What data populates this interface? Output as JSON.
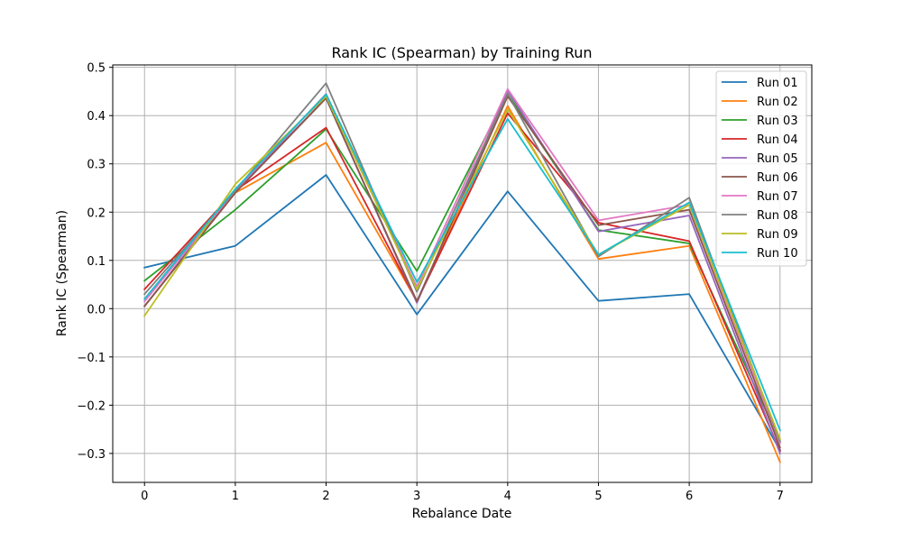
{
  "chart_data": {
    "type": "line",
    "title": "Rank IC (Spearman) by Training Run",
    "xlabel": "Rebalance Date",
    "ylabel": "Rank IC (Spearman)",
    "x": [
      0,
      1,
      2,
      3,
      4,
      5,
      6,
      7
    ],
    "xlim": [
      -0.35,
      7.35
    ],
    "ylim": [
      -0.36,
      0.505
    ],
    "yticks": [
      -0.3,
      -0.2,
      -0.1,
      0.0,
      0.1,
      0.2,
      0.3,
      0.4,
      0.5
    ],
    "ytick_labels": [
      "−0.3",
      "−0.2",
      "−0.1",
      "0.0",
      "0.1",
      "0.2",
      "0.3",
      "0.4",
      "0.5"
    ],
    "xtick_labels": [
      "0",
      "1",
      "2",
      "3",
      "4",
      "5",
      "6",
      "7"
    ],
    "grid": true,
    "legend_position": "top-right",
    "series": [
      {
        "name": "Run 01",
        "color": "#1f77b4",
        "values": [
          0.085,
          0.13,
          0.277,
          -0.012,
          0.243,
          0.016,
          0.03,
          -0.293
        ]
      },
      {
        "name": "Run 02",
        "color": "#ff7f0e",
        "values": [
          0.005,
          0.24,
          0.344,
          0.015,
          0.42,
          0.103,
          0.13,
          -0.318
        ]
      },
      {
        "name": "Run 03",
        "color": "#2ca02c",
        "values": [
          0.058,
          0.205,
          0.372,
          0.078,
          0.445,
          0.163,
          0.135,
          -0.275
        ]
      },
      {
        "name": "Run 04",
        "color": "#d62728",
        "values": [
          0.04,
          0.245,
          0.375,
          0.015,
          0.405,
          0.178,
          0.14,
          -0.295
        ]
      },
      {
        "name": "Run 05",
        "color": "#9467bd",
        "values": [
          0.005,
          0.245,
          0.436,
          0.012,
          0.452,
          0.16,
          0.193,
          -0.3
        ]
      },
      {
        "name": "Run 06",
        "color": "#8c564b",
        "values": [
          0.005,
          0.24,
          0.436,
          0.015,
          0.44,
          0.173,
          0.205,
          -0.288
        ]
      },
      {
        "name": "Run 07",
        "color": "#e377c2",
        "values": [
          0.015,
          0.245,
          0.445,
          0.045,
          0.455,
          0.183,
          0.215,
          -0.278
        ]
      },
      {
        "name": "Run 08",
        "color": "#7f7f7f",
        "values": [
          0.03,
          0.245,
          0.467,
          0.035,
          0.445,
          0.108,
          0.23,
          -0.275
        ]
      },
      {
        "name": "Run 09",
        "color": "#bcbd22",
        "values": [
          -0.015,
          0.258,
          0.44,
          0.04,
          0.413,
          0.112,
          0.215,
          -0.27
        ]
      },
      {
        "name": "Run 10",
        "color": "#17becf",
        "values": [
          0.02,
          0.248,
          0.444,
          0.055,
          0.393,
          0.112,
          0.22,
          -0.252
        ]
      }
    ]
  }
}
